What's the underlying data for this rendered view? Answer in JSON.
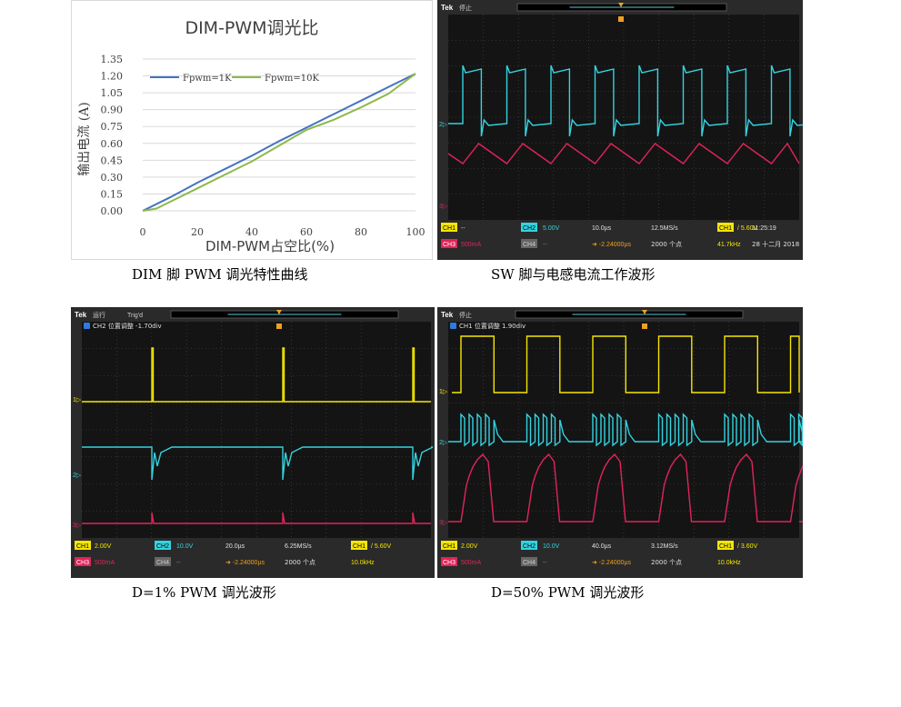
{
  "chart_data": {
    "type": "line",
    "title": "DIM-PWM调光比",
    "xlabel": "DIM-PWM占空比(%)",
    "ylabel": "输出电流 (A)",
    "x_ticks": [
      "0",
      "20",
      "40",
      "60",
      "80",
      "100"
    ],
    "y_ticks": [
      "0.00",
      "0.15",
      "0.30",
      "0.45",
      "0.60",
      "0.75",
      "0.90",
      "1.05",
      "1.20",
      "1.35"
    ],
    "xlim": [
      0,
      100
    ],
    "ylim": [
      0,
      1.35
    ],
    "grid": true,
    "legend_position": "top",
    "series": [
      {
        "name": "Fpwm=1K",
        "color": "#4472c4",
        "x": [
          0,
          10,
          20,
          30,
          40,
          50,
          60,
          70,
          80,
          90,
          100
        ],
        "y": [
          0.0,
          0.12,
          0.25,
          0.37,
          0.49,
          0.62,
          0.74,
          0.86,
          0.98,
          1.1,
          1.22
        ]
      },
      {
        "name": "Fpwm=10K",
        "color": "#8fb84a",
        "x": [
          0,
          5,
          10,
          20,
          30,
          40,
          50,
          60,
          70,
          80,
          90,
          100
        ],
        "y": [
          0.0,
          0.02,
          0.08,
          0.2,
          0.32,
          0.44,
          0.58,
          0.72,
          0.81,
          0.92,
          1.04,
          1.22
        ]
      }
    ]
  },
  "captions": {
    "c1": "DIM 脚 PWM 调光特性曲线",
    "c2": "SW 脚与电感电流工作波形",
    "c3": "D=1% PWM 调光波形",
    "c4": "D=50% PWM 调光波形"
  },
  "scopes": {
    "s1": {
      "brand": "Tek",
      "state": "停止",
      "trig": "",
      "info": "",
      "ch1": "CH1",
      "ch1_val": "--",
      "ch2": "CH2",
      "ch2_val": "5.00V",
      "ch3": "CH3",
      "ch3_val": "500mA",
      "ch4": "CH4",
      "ch4_val": "--",
      "timebase": "10.0µs",
      "offset": "-2.24000µs",
      "rate": "12.5MS/s",
      "points": "2000 个点",
      "trig_ch": "CH1",
      "trig_level": "5.60V",
      "freq": "41.7kHz",
      "time": "11:25:19",
      "date": "28 十二月 2018"
    },
    "s2": {
      "brand": "Tek",
      "state": "运行",
      "trig": "Trig'd",
      "info": "CH2 位置调整 -1.70div",
      "ch1": "CH1",
      "ch1_val": "2.00V",
      "ch2": "CH2",
      "ch2_val": "10.0V",
      "ch3": "CH3",
      "ch3_val": "500mA",
      "ch4": "CH4",
      "ch4_val": "--",
      "timebase": "20.0µs",
      "offset": "-2.24000µs",
      "rate": "6.25MS/s",
      "points": "2000 个点",
      "trig_ch": "CH1",
      "trig_level": "5.60V",
      "freq": "10.0kHz"
    },
    "s3": {
      "brand": "Tek",
      "state": "停止",
      "trig": "",
      "info": "CH1 位置调整 1.90div",
      "ch1": "CH1",
      "ch1_val": "2.00V",
      "ch2": "CH2",
      "ch2_val": "10.0V",
      "ch3": "CH3",
      "ch3_val": "500mA",
      "ch4": "CH4",
      "ch4_val": "--",
      "timebase": "40.0µs",
      "offset": "-2.24000µs",
      "rate": "3.12MS/s",
      "points": "2000 个点",
      "trig_ch": "CH1",
      "trig_level": "3.60V",
      "freq": "10.0kHz"
    }
  },
  "colors": {
    "ch1": "#f5e600",
    "ch2": "#33d3e0",
    "ch3": "#e0245a",
    "grid": "#4a4a4a",
    "bg": "#141414"
  }
}
